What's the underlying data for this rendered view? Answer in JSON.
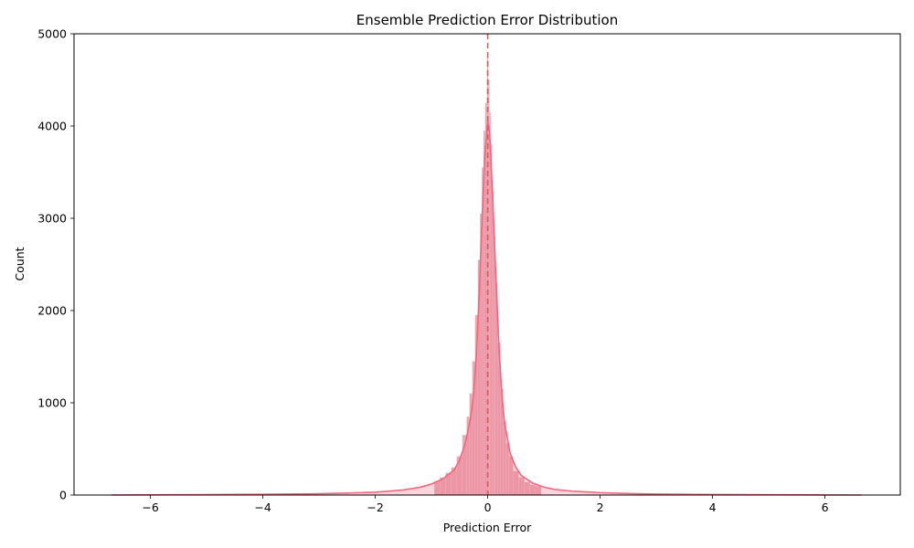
{
  "chart_data": {
    "type": "histogram",
    "title": "Ensemble Prediction Error Distribution",
    "xlabel": "Prediction Error",
    "ylabel": "Count",
    "xlim": [
      -7.36,
      7.34
    ],
    "ylim": [
      0,
      5000
    ],
    "xticks": [
      -6,
      -4,
      -2,
      0,
      2,
      4,
      6
    ],
    "xtick_labels": [
      "−6",
      "−4",
      "−2",
      "0",
      "2",
      "4",
      "6"
    ],
    "yticks": [
      0,
      1000,
      2000,
      3000,
      4000,
      5000
    ],
    "ytick_labels": [
      "0",
      "1000",
      "2000",
      "3000",
      "4000",
      "5000"
    ],
    "grid": false,
    "series": [
      {
        "kind": "histogram",
        "color": "#e8a0ab",
        "edge_color": "#f3c6cd",
        "bins": {
          "x": [
            -0.9,
            -0.8,
            -0.7,
            -0.6,
            -0.5,
            -0.4,
            -0.35,
            -0.3,
            -0.25,
            -0.2,
            -0.15,
            -0.12,
            -0.09,
            -0.06,
            -0.03,
            0.0,
            0.02,
            0.04,
            0.06,
            0.09,
            0.12,
            0.15,
            0.2,
            0.25,
            0.3,
            0.35,
            0.4,
            0.5,
            0.6,
            0.7,
            0.8,
            0.9
          ],
          "count": [
            150,
            190,
            240,
            300,
            420,
            650,
            850,
            1100,
            1450,
            1950,
            2550,
            3050,
            3550,
            3950,
            4250,
            4750,
            4500,
            4150,
            3800,
            3300,
            2800,
            2300,
            1650,
            1150,
            800,
            560,
            420,
            260,
            190,
            140,
            110,
            95
          ]
        }
      },
      {
        "kind": "kde",
        "color": "#f06880",
        "points": {
          "x": [
            -6.7,
            -6,
            -5,
            -4,
            -3,
            -2.5,
            -2,
            -1.5,
            -1.2,
            -1,
            -0.8,
            -0.6,
            -0.5,
            -0.4,
            -0.3,
            -0.25,
            -0.2,
            -0.15,
            -0.1,
            -0.05,
            0,
            0.03,
            0.06,
            0.1,
            0.15,
            0.2,
            0.25,
            0.3,
            0.4,
            0.5,
            0.6,
            0.8,
            1,
            1.2,
            1.5,
            2,
            2.5,
            3,
            4,
            5,
            6,
            6.65
          ],
          "y": [
            0,
            2,
            5,
            8,
            14,
            22,
            30,
            55,
            85,
            120,
            175,
            270,
            380,
            560,
            850,
            1100,
            1550,
            2200,
            3000,
            3700,
            4050,
            3950,
            3600,
            3050,
            2300,
            1600,
            1100,
            780,
            450,
            300,
            210,
            130,
            85,
            60,
            42,
            26,
            17,
            11,
            6,
            3,
            1,
            0
          ]
        }
      },
      {
        "kind": "vline",
        "x": 0,
        "color": "#e05a5a",
        "style": "dashed"
      }
    ]
  }
}
